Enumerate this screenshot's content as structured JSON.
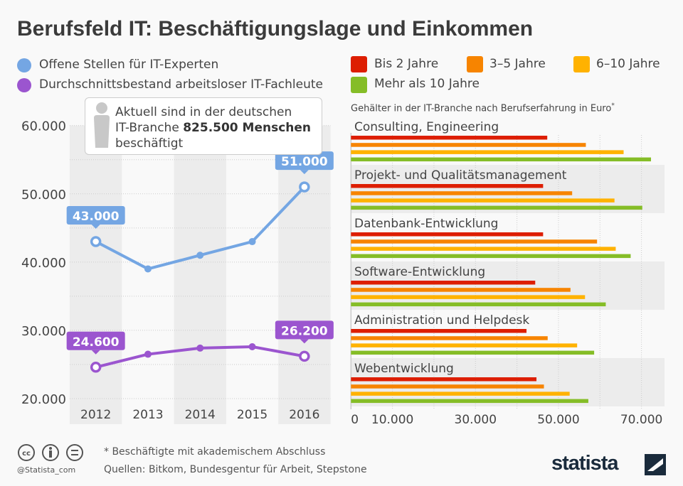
{
  "title": "Berufsfeld IT: Beschäftigungslage und Einkommen",
  "line_legend": [
    "Offene Stellen für IT-Experten",
    "Durchschnittsbestand arbeitsloser IT-Fachleute"
  ],
  "callout": {
    "line1": "Aktuell sind in der deutschen",
    "line2_pre": "IT-Branche ",
    "line2_bold": "825.500 Menschen",
    "line3": "beschäftigt",
    "icon": "person-icon"
  },
  "bar_legend": [
    "Bis 2 Jahre",
    "3–5 Jahre",
    "6–10 Jahre",
    "Mehr als 10 Jahre"
  ],
  "bar_subtitle": "Gehälter in der IT-Branche nach Berufserfahrung in Euro",
  "bar_subtitle_mark": "*",
  "footer": {
    "note": "* Beschäftigte mit akademischem Abschluss",
    "sources": "Quellen: Bitkom, Bundesgentur für Arbeit, Stepstone",
    "handle": "@Statista_com",
    "logo": "statista"
  },
  "chart_data": [
    {
      "type": "line",
      "categories": [
        "2012",
        "2013",
        "2014",
        "2015",
        "2016"
      ],
      "yticks": [
        "20.000",
        "30.000",
        "40.000",
        "50.000",
        "60.000"
      ],
      "ylim": [
        20000,
        60000
      ],
      "grid": true,
      "legend": "top-left",
      "series": [
        {
          "name": "Offene Stellen für IT-Experten",
          "color": "#74a6e3",
          "values": [
            43000,
            39000,
            41000,
            43000,
            51000
          ],
          "labels": {
            "0": "43.000",
            "4": "51.000"
          }
        },
        {
          "name": "Durchschnittsbestand arbeitsloser IT-Fachleute",
          "color": "#9b55cf",
          "values": [
            24600,
            26500,
            27400,
            27600,
            26200
          ],
          "labels": {
            "0": "24.600",
            "4": "26.200"
          }
        }
      ]
    },
    {
      "type": "bar",
      "orientation": "horizontal",
      "categories": [
        "Consulting, Engineering",
        "Projekt- und Qualitätsmanagement",
        "Datenbank-Entwicklung",
        "Software-Entwicklung",
        "Administration und Helpdesk",
        "Webentwicklung"
      ],
      "xticks": [
        "0",
        "10.000",
        "30.000",
        "50.000",
        "70.000"
      ],
      "xlim": [
        0,
        75000
      ],
      "grid": true,
      "legend": "top",
      "series": [
        {
          "name": "Bis 2 Jahre",
          "color": "#dd1e02",
          "values": [
            47300,
            46300,
            46300,
            44400,
            42300,
            44700
          ]
        },
        {
          "name": "3–5 Jahre",
          "color": "#f78400",
          "values": [
            56600,
            53300,
            59300,
            52900,
            47400,
            46500
          ]
        },
        {
          "name": "6–10 Jahre",
          "color": "#ffb200",
          "values": [
            65700,
            63500,
            63800,
            56400,
            54500,
            52700
          ]
        },
        {
          "name": "Mehr als 10 Jahre",
          "color": "#85bd27",
          "values": [
            72300,
            70200,
            67400,
            61400,
            58600,
            57200
          ]
        }
      ]
    }
  ]
}
